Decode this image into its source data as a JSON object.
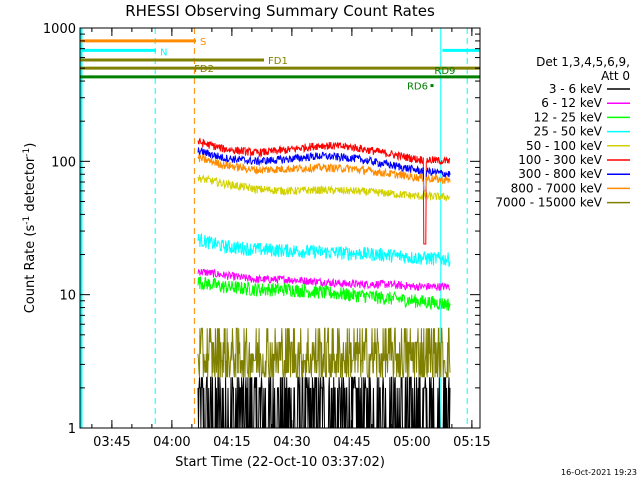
{
  "chart_data": {
    "type": "line",
    "title": "RHESSI Observing Summary Count Rates",
    "xlabel": "Start Time (22-Oct-10 03:37:02)",
    "ylabel_parts": [
      "Count Rate (s",
      "-1",
      " detector",
      "-1",
      ")"
    ],
    "yscale": "log",
    "ylim": [
      1,
      1000
    ],
    "xlim_minutes": [
      0,
      100
    ],
    "x_ticks": [
      {
        "t": 7.97,
        "label": "03:45"
      },
      {
        "t": 22.97,
        "label": "04:00"
      },
      {
        "t": 37.97,
        "label": "04:15"
      },
      {
        "t": 52.97,
        "label": "04:30"
      },
      {
        "t": 67.97,
        "label": "04:45"
      },
      {
        "t": 82.97,
        "label": "05:00"
      },
      {
        "t": 97.97,
        "label": "05:15"
      }
    ],
    "y_ticks": [
      {
        "v": 1,
        "label": "1"
      },
      {
        "v": 10,
        "label": "10"
      },
      {
        "v": 100,
        "label": "100"
      },
      {
        "v": 1000,
        "label": "1000"
      }
    ],
    "legend_header": [
      "Det 1,3,4,5,6,9,",
      "Att 0"
    ],
    "data_window_minutes": [
      29.5,
      92.5
    ],
    "series": [
      {
        "name": "3 - 6 keV",
        "color": "#000000",
        "min": 1.0,
        "max": 2.4
      },
      {
        "name": "6 - 12 keV",
        "color": "#ff00ff",
        "x": [
          29.5,
          36,
          44,
          52,
          60,
          68,
          76,
          84,
          92.5
        ],
        "values": [
          15,
          14,
          13,
          13,
          12.5,
          12,
          12,
          11.5,
          11.5
        ]
      },
      {
        "name": "12 - 25 keV",
        "color": "#00ff00",
        "x": [
          29.5,
          36,
          44,
          52,
          60,
          68,
          76,
          84,
          92.5
        ],
        "values": [
          12.5,
          11.5,
          11,
          11,
          10.5,
          10,
          9.5,
          9,
          8.5
        ]
      },
      {
        "name": "25 - 50 keV",
        "color": "#00ffff",
        "x": [
          29.5,
          36,
          44,
          52,
          60,
          68,
          76,
          84,
          92.5
        ],
        "values": [
          26,
          23,
          22,
          21.5,
          21,
          20.5,
          20,
          19,
          18.5
        ]
      },
      {
        "name": "50 - 100 keV",
        "color": "#d2d200",
        "x": [
          29.5,
          36,
          44,
          52,
          60,
          68,
          76,
          84,
          92.5
        ],
        "values": [
          75,
          68,
          62,
          60,
          61,
          60,
          58,
          55,
          54
        ]
      },
      {
        "name": "100 - 300 keV",
        "color": "#ff0000",
        "x": [
          29.5,
          36,
          44,
          52,
          60,
          68,
          76,
          84,
          92.5
        ],
        "values": [
          140,
          124,
          116,
          122,
          132,
          128,
          116,
          104,
          100
        ]
      },
      {
        "name": "300 - 800 keV",
        "color": "#0000ff",
        "x": [
          29.5,
          36,
          44,
          52,
          60,
          68,
          76,
          84,
          92.5
        ],
        "values": [
          120,
          106,
          100,
          104,
          110,
          106,
          96,
          86,
          80
        ]
      },
      {
        "name": "800 - 7000 keV",
        "color": "#ff8c00",
        "x": [
          29.5,
          36,
          44,
          52,
          60,
          68,
          76,
          84,
          92.5
        ],
        "values": [
          106,
          94,
          86,
          88,
          90,
          88,
          82,
          76,
          72
        ]
      },
      {
        "name": "7000 - 15000 keV",
        "color": "#808000",
        "min": 2.4,
        "max": 5.6
      }
    ],
    "annotations": [
      {
        "label": "S",
        "color": "#ff8c00",
        "start": 0,
        "end": 29.0,
        "level": 800
      },
      {
        "label": "N",
        "color": "#00ffff",
        "start": 0,
        "end": 19.0,
        "level": 680
      },
      {
        "label": "FD1",
        "color": "#808000",
        "start": 0,
        "end": 46.0,
        "level": 575
      },
      {
        "label": "FD2",
        "color": "#808000",
        "start": 0,
        "end": 100,
        "level": 500
      },
      {
        "label": "RD9",
        "color": "#008000",
        "start": 0,
        "end": 100,
        "level": 430
      },
      {
        "label": "RD6",
        "color": "#008000",
        "point": 88.0,
        "level": 370
      }
    ],
    "vertical_markers": [
      {
        "t": 18.8,
        "color": "#00ffff"
      },
      {
        "t": 28.6,
        "color": "#ff8c00"
      },
      {
        "t": 96.8,
        "color": "#00ffff"
      }
    ],
    "solid_verticals": [
      {
        "t": 90.2,
        "color": "#00ffff"
      }
    ],
    "timestamp": "16-Oct-2021 19:23"
  }
}
